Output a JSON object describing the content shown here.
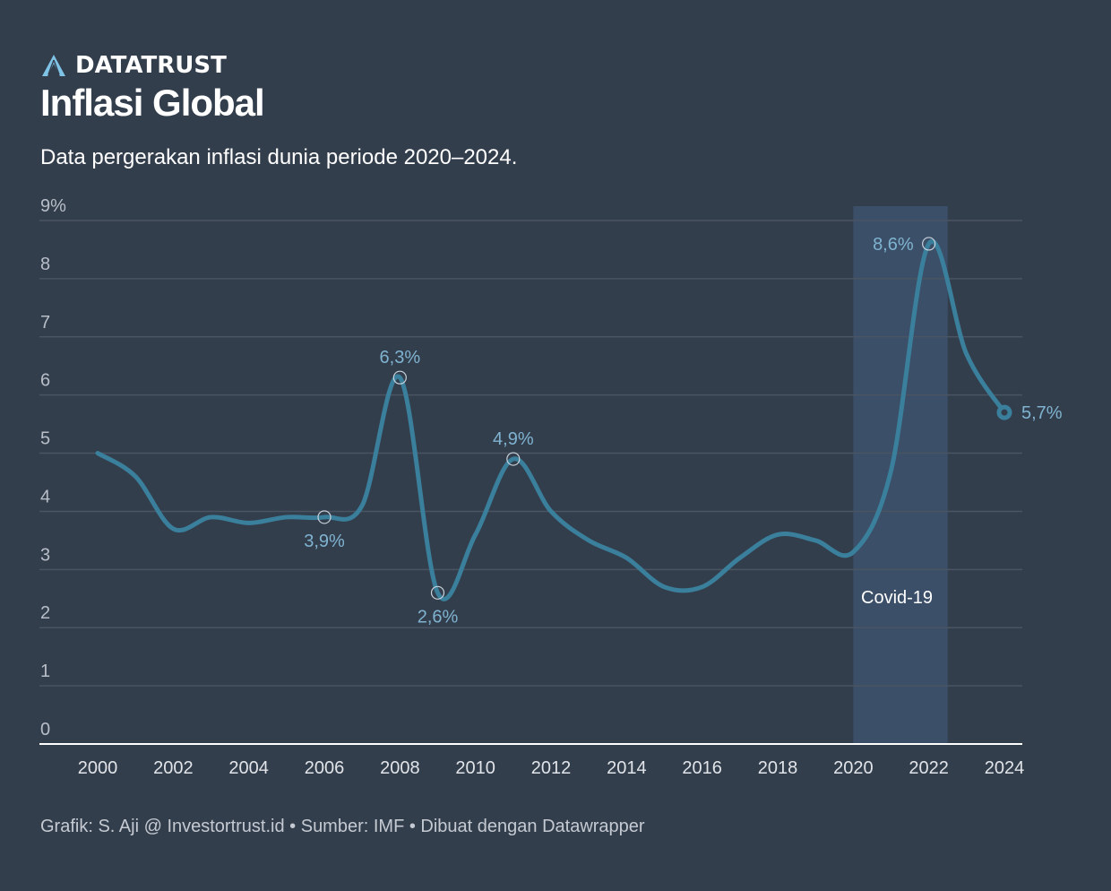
{
  "header": {
    "brand_name": "DATATRUST",
    "brand_icon": "datatrust-logo-icon",
    "title": "Inflasi Global",
    "subtitle": "Data pergerakan inflasi dunia periode 2020–2024."
  },
  "footer": {
    "credit": "Grafik: S. Aji @ Investortrust.id • Sumber: IMF • Dibuat dengan Datawrapper"
  },
  "colors": {
    "background": "#333e4d",
    "line": "#3a7f9b",
    "highlight_band": "#3b4f68",
    "label": "#7fb3d0",
    "grid": "#4a5462",
    "baseline": "#ffffff"
  },
  "chart_data": {
    "type": "line",
    "title": "Inflasi Global",
    "subtitle": "Data pergerakan inflasi dunia periode 2020–2024.",
    "xlabel": "",
    "ylabel": "",
    "x": [
      2000,
      2001,
      2002,
      2003,
      2004,
      2005,
      2006,
      2007,
      2008,
      2009,
      2010,
      2011,
      2012,
      2013,
      2014,
      2015,
      2016,
      2017,
      2018,
      2019,
      2020,
      2021,
      2022,
      2023,
      2024
    ],
    "series": [
      {
        "name": "Inflasi global (%)",
        "values": [
          5.0,
          4.6,
          3.7,
          3.9,
          3.8,
          3.9,
          3.9,
          4.1,
          6.3,
          2.6,
          3.6,
          4.9,
          4.0,
          3.5,
          3.2,
          2.7,
          2.7,
          3.2,
          3.6,
          3.5,
          3.3,
          4.7,
          8.6,
          6.7,
          5.7
        ]
      }
    ],
    "ylim": [
      0,
      9
    ],
    "yticks": [
      0,
      1,
      2,
      3,
      4,
      5,
      6,
      7,
      8,
      9
    ],
    "ytick_labels": [
      "0",
      "1",
      "2",
      "3",
      "4",
      "5",
      "6",
      "7",
      "8",
      "9%"
    ],
    "xticks": [
      2000,
      2002,
      2004,
      2006,
      2008,
      2010,
      2012,
      2014,
      2016,
      2018,
      2020,
      2022,
      2024
    ],
    "xtick_labels": [
      "2000",
      "2002",
      "2004",
      "2006",
      "2008",
      "2010",
      "2012",
      "2014",
      "2016",
      "2018",
      "2020",
      "2022",
      "2024"
    ],
    "grid": true,
    "legend": "none",
    "data_labels": [
      {
        "x": 2006,
        "value": 3.9,
        "text": "3,9%",
        "position": "below"
      },
      {
        "x": 2008,
        "value": 6.3,
        "text": "6,3%",
        "position": "above"
      },
      {
        "x": 2009,
        "value": 2.6,
        "text": "2,6%",
        "position": "below"
      },
      {
        "x": 2011,
        "value": 4.9,
        "text": "4,9%",
        "position": "above"
      },
      {
        "x": 2022,
        "value": 8.6,
        "text": "8,6%",
        "position": "left"
      },
      {
        "x": 2024,
        "value": 5.7,
        "text": "5,7%",
        "position": "right"
      }
    ],
    "highlight_range": {
      "from": 2020,
      "to": 2022.5,
      "label": "Covid-19"
    }
  }
}
